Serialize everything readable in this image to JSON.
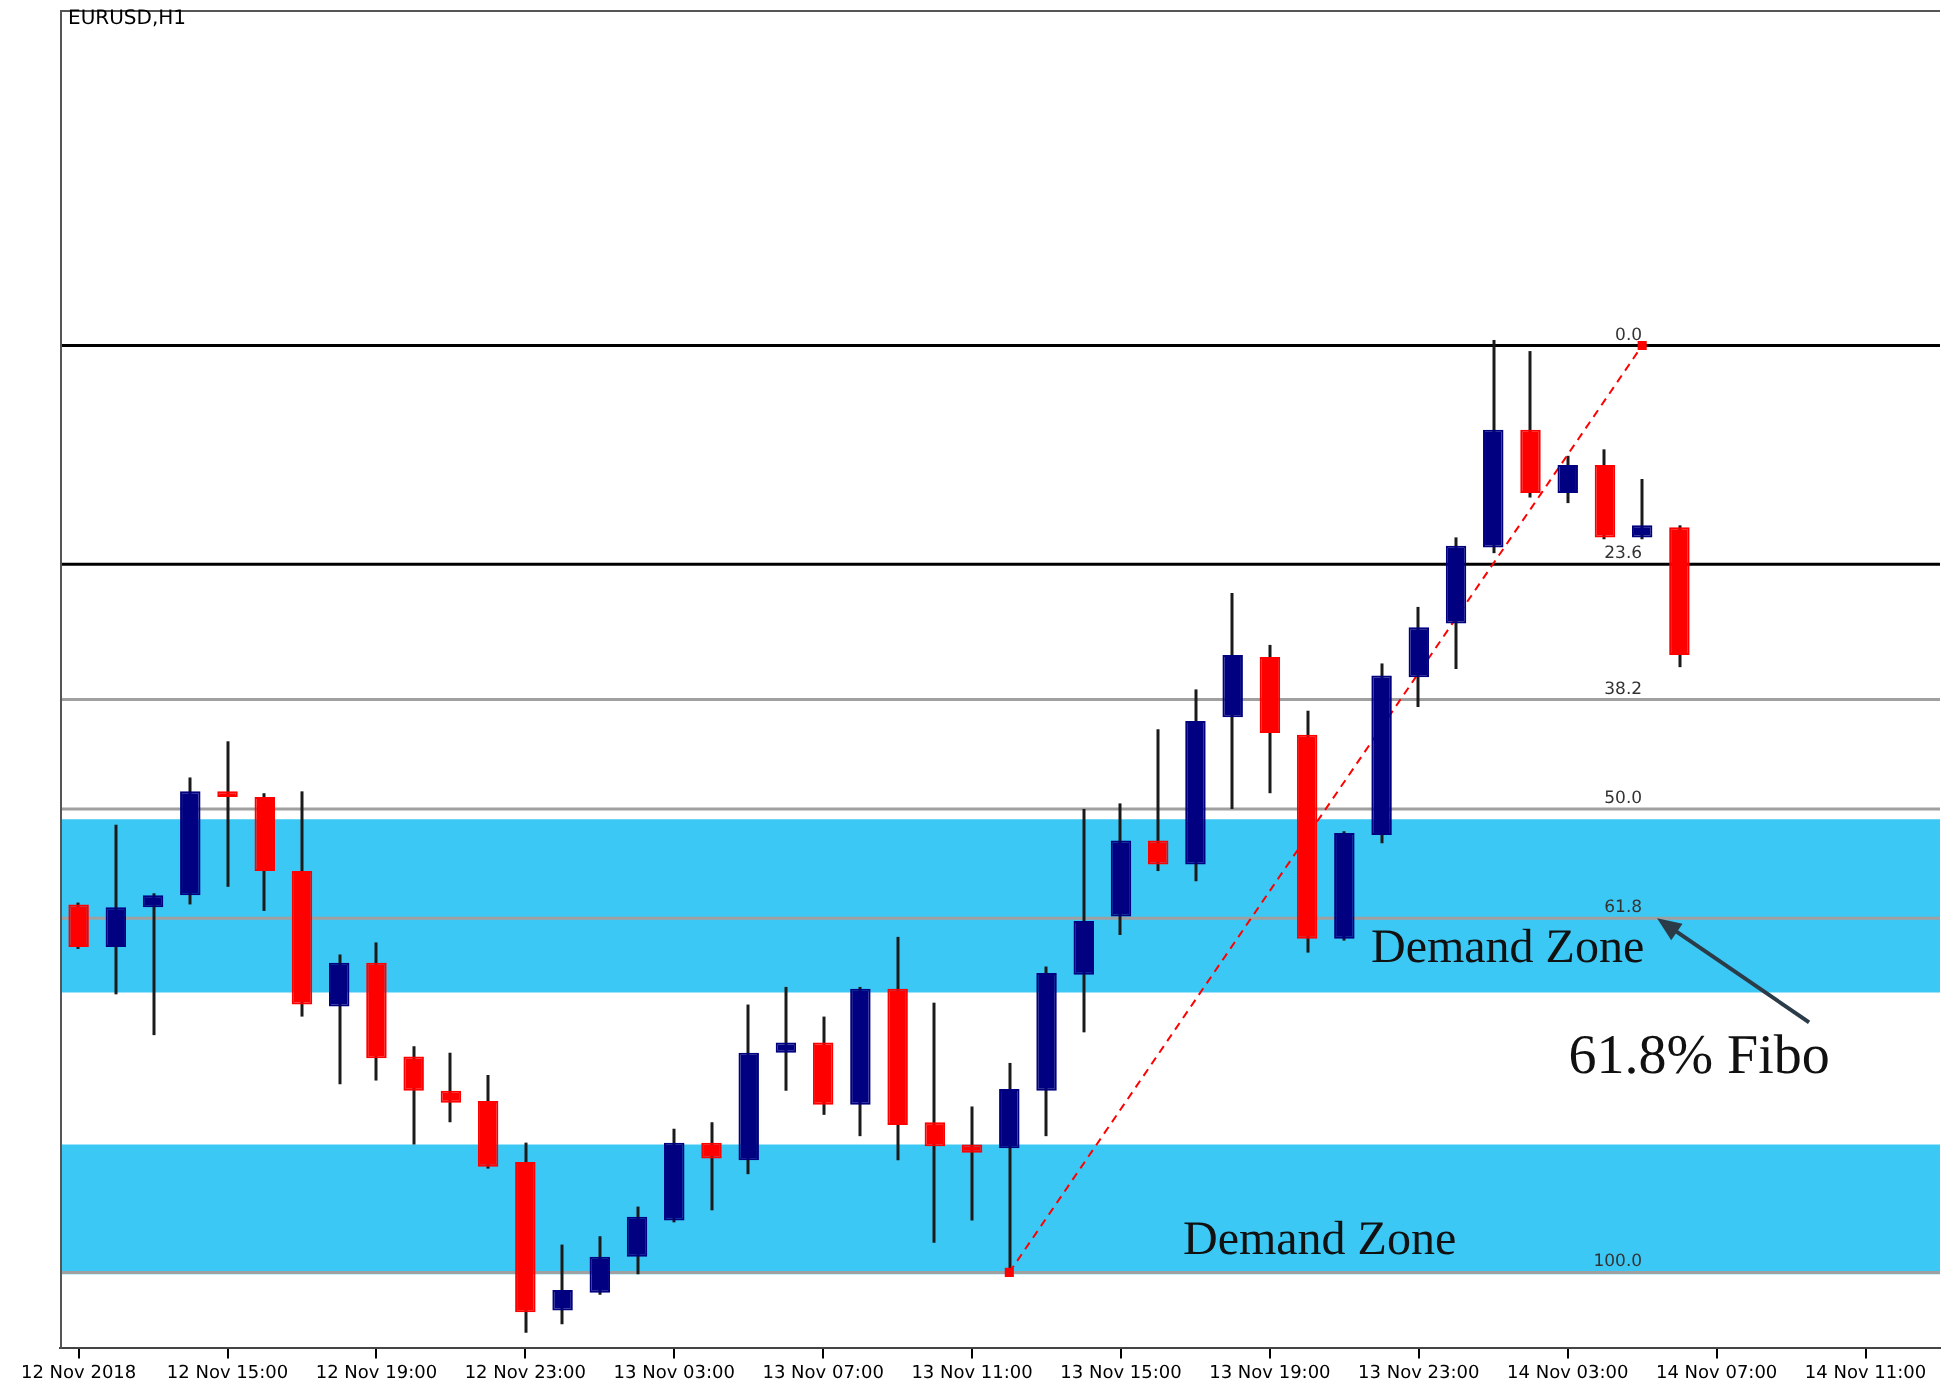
{
  "chart_data": {
    "type": "candlestick",
    "title": "EURUSD,H1",
    "xlim": [
      "2018-11-12T10:30",
      "2018-11-14T13:00"
    ],
    "ylim": [
      108.2,
      -36.2
    ],
    "tick_labels": "x",
    "xticks": [
      {
        "value": "2018-11-12T11:00",
        "label": "12 Nov 2018"
      },
      {
        "value": "2018-11-12T15:00",
        "label": "12 Nov 15:00"
      },
      {
        "value": "2018-11-12T19:00",
        "label": "12 Nov 19:00"
      },
      {
        "value": "2018-11-12T23:00",
        "label": "12 Nov 23:00"
      },
      {
        "value": "2018-11-13T03:00",
        "label": "13 Nov 03:00"
      },
      {
        "value": "2018-11-13T07:00",
        "label": "13 Nov 07:00"
      },
      {
        "value": "2018-11-13T11:00",
        "label": "13 Nov 11:00"
      },
      {
        "value": "2018-11-13T15:00",
        "label": "13 Nov 15:00"
      },
      {
        "value": "2018-11-13T19:00",
        "label": "13 Nov 19:00"
      },
      {
        "value": "2018-11-13T23:00",
        "label": "13 Nov 23:00"
      },
      {
        "value": "2018-11-14T03:00",
        "label": "14 Nov 03:00"
      },
      {
        "value": "2018-11-14T07:00",
        "label": "14 Nov 07:00"
      },
      {
        "value": "2018-11-14T11:00",
        "label": "14 Nov 11:00"
      }
    ],
    "series": [
      {
        "x": [
          "2018-11-12T11:00",
          "2018-11-12T12:00",
          "2018-11-12T13:00",
          "2018-11-12T14:00",
          "2018-11-12T15:00",
          "2018-11-12T16:00",
          "2018-11-12T17:00",
          "2018-11-12T18:00",
          "2018-11-12T19:00",
          "2018-11-12T20:00",
          "2018-11-12T21:00",
          "2018-11-12T22:00",
          "2018-11-12T23:00",
          "2018-11-13T00:00",
          "2018-11-13T01:00",
          "2018-11-13T02:00",
          "2018-11-13T03:00",
          "2018-11-13T04:00",
          "2018-11-13T05:00",
          "2018-11-13T06:00",
          "2018-11-13T07:00",
          "2018-11-13T08:00",
          "2018-11-13T09:00",
          "2018-11-13T10:00",
          "2018-11-13T11:00",
          "2018-11-13T12:00",
          "2018-11-13T13:00",
          "2018-11-13T14:00",
          "2018-11-13T15:00",
          "2018-11-13T16:00",
          "2018-11-13T17:00",
          "2018-11-13T18:00",
          "2018-11-13T19:00",
          "2018-11-13T20:00",
          "2018-11-13T21:00",
          "2018-11-13T22:00",
          "2018-11-13T23:00",
          "2018-11-14T00:00",
          "2018-11-14T01:00",
          "2018-11-14T02:00",
          "2018-11-14T03:00",
          "2018-11-14T04:00",
          "2018-11-14T05:00",
          "2018-11-14T06:00"
        ],
        "ohlc": [
          [
            60.3,
            65.1,
            60.1,
            64.9
          ],
          [
            64.9,
            70.0,
            51.7,
            60.6
          ],
          [
            60.6,
            74.4,
            59.1,
            59.3
          ],
          [
            59.3,
            60.3,
            46.6,
            48.1
          ],
          [
            48.1,
            58.4,
            42.7,
            48.7
          ],
          [
            48.7,
            61.0,
            48.3,
            56.7
          ],
          [
            56.7,
            72.4,
            48.1,
            71.1
          ],
          [
            71.3,
            79.7,
            65.7,
            66.6
          ],
          [
            66.6,
            79.3,
            64.4,
            76.9
          ],
          [
            76.7,
            86.2,
            75.6,
            80.4
          ],
          [
            80.4,
            83.8,
            76.3,
            81.7
          ],
          [
            81.5,
            88.8,
            78.7,
            88.6
          ],
          [
            88.1,
            106.5,
            86.0,
            104.3
          ],
          [
            104.1,
            105.6,
            97.0,
            101.9
          ],
          [
            102.2,
            102.4,
            96.1,
            98.3
          ],
          [
            98.3,
            100.2,
            92.9,
            94.0
          ],
          [
            94.4,
            94.6,
            84.5,
            86.0
          ],
          [
            86.0,
            93.3,
            83.8,
            87.7
          ],
          [
            87.9,
            89.4,
            71.1,
            76.3
          ],
          [
            76.3,
            80.4,
            69.2,
            75.2
          ],
          [
            75.2,
            83.0,
            72.4,
            81.9
          ],
          [
            81.9,
            85.3,
            69.2,
            69.4
          ],
          [
            69.4,
            87.9,
            63.8,
            84.1
          ],
          [
            83.8,
            96.8,
            70.9,
            86.4
          ],
          [
            86.2,
            94.4,
            82.1,
            87.1
          ],
          [
            86.6,
            100,
            77.4,
            80.2
          ],
          [
            80.4,
            85.3,
            67.0,
            67.7
          ],
          [
            67.9,
            74.1,
            50.0,
            62.1
          ],
          [
            61.6,
            63.6,
            49.4,
            53.4
          ],
          [
            53.4,
            56.7,
            41.4,
            56.0
          ],
          [
            56.0,
            57.8,
            37.1,
            40.5
          ],
          [
            40.1,
            50.0,
            26.7,
            33.4
          ],
          [
            33.6,
            48.3,
            32.3,
            41.8
          ],
          [
            42.0,
            65.5,
            39.4,
            64.0
          ],
          [
            64.0,
            64.2,
            52.4,
            52.6
          ],
          [
            52.8,
            53.7,
            34.3,
            35.6
          ],
          [
            35.8,
            39.0,
            28.2,
            30.4
          ],
          [
            30.0,
            34.9,
            20.7,
            21.6
          ],
          [
            21.8,
            22.4,
            -0.6,
            9.1
          ],
          [
            9.1,
            16.4,
            0.6,
            15.9
          ],
          [
            15.9,
            17.0,
            11.9,
            12.9
          ],
          [
            12.9,
            20.9,
            11.2,
            20.7
          ],
          [
            20.7,
            20.9,
            14.4,
            19.4
          ],
          [
            19.6,
            34.7,
            19.4,
            33.4
          ]
        ],
        "colors": [
          "#ff0000",
          "#000080",
          "#000080",
          "#000080",
          "#ff0000",
          "#ff0000",
          "#ff0000",
          "#000080",
          "#ff0000",
          "#ff0000",
          "#ff0000",
          "#ff0000",
          "#ff0000",
          "#000080",
          "#000080",
          "#000080",
          "#000080",
          "#ff0000",
          "#000080",
          "#000080",
          "#ff0000",
          "#000080",
          "#ff0000",
          "#ff0000",
          "#ff0000",
          "#000080",
          "#000080",
          "#000080",
          "#000080",
          "#ff0000",
          "#000080",
          "#000080",
          "#ff0000",
          "#ff0000",
          "#000080",
          "#000080",
          "#000080",
          "#000080",
          "#000080",
          "#ff0000",
          "#000080",
          "#ff0000",
          "#000080",
          "#ff0000"
        ]
      },
      {
        "type": "line",
        "x": [
          "2018-11-13T12:00",
          "2018-11-14T05:00"
        ],
        "values": [
          100,
          0
        ],
        "color": "#ff0000",
        "line_style": "dashed",
        "marker": "square"
      }
    ],
    "ref_lines": [
      {
        "axis": "y",
        "value": 0,
        "label": "0.0",
        "color": "#000000"
      },
      {
        "axis": "y",
        "value": 23.6,
        "label": "23.6",
        "color": "#000000"
      },
      {
        "axis": "y",
        "value": 38.2,
        "label": "38.2",
        "color": "#a0a0a0"
      },
      {
        "axis": "y",
        "value": 50,
        "label": "50.0",
        "color": "#a0a0a0"
      },
      {
        "axis": "y",
        "value": 61.8,
        "label": "61.8",
        "color": "#a0a0a0"
      },
      {
        "axis": "y",
        "value": 100,
        "label": "100.0",
        "color": "#a0a0a0"
      }
    ],
    "bands": [
      {
        "axis": "y",
        "from": 86.2,
        "to": 100.2,
        "label": "Demand Zone",
        "color": "#3cc8f5"
      },
      {
        "axis": "y",
        "from": 51.1,
        "to": 69.8,
        "label": "Demand Zone",
        "color": "#3cc8f5"
      }
    ],
    "annotations": [
      {
        "text": "61.8% Fibo",
        "x": "2018-11-14T05:24",
        "y": 61.8
      }
    ]
  }
}
